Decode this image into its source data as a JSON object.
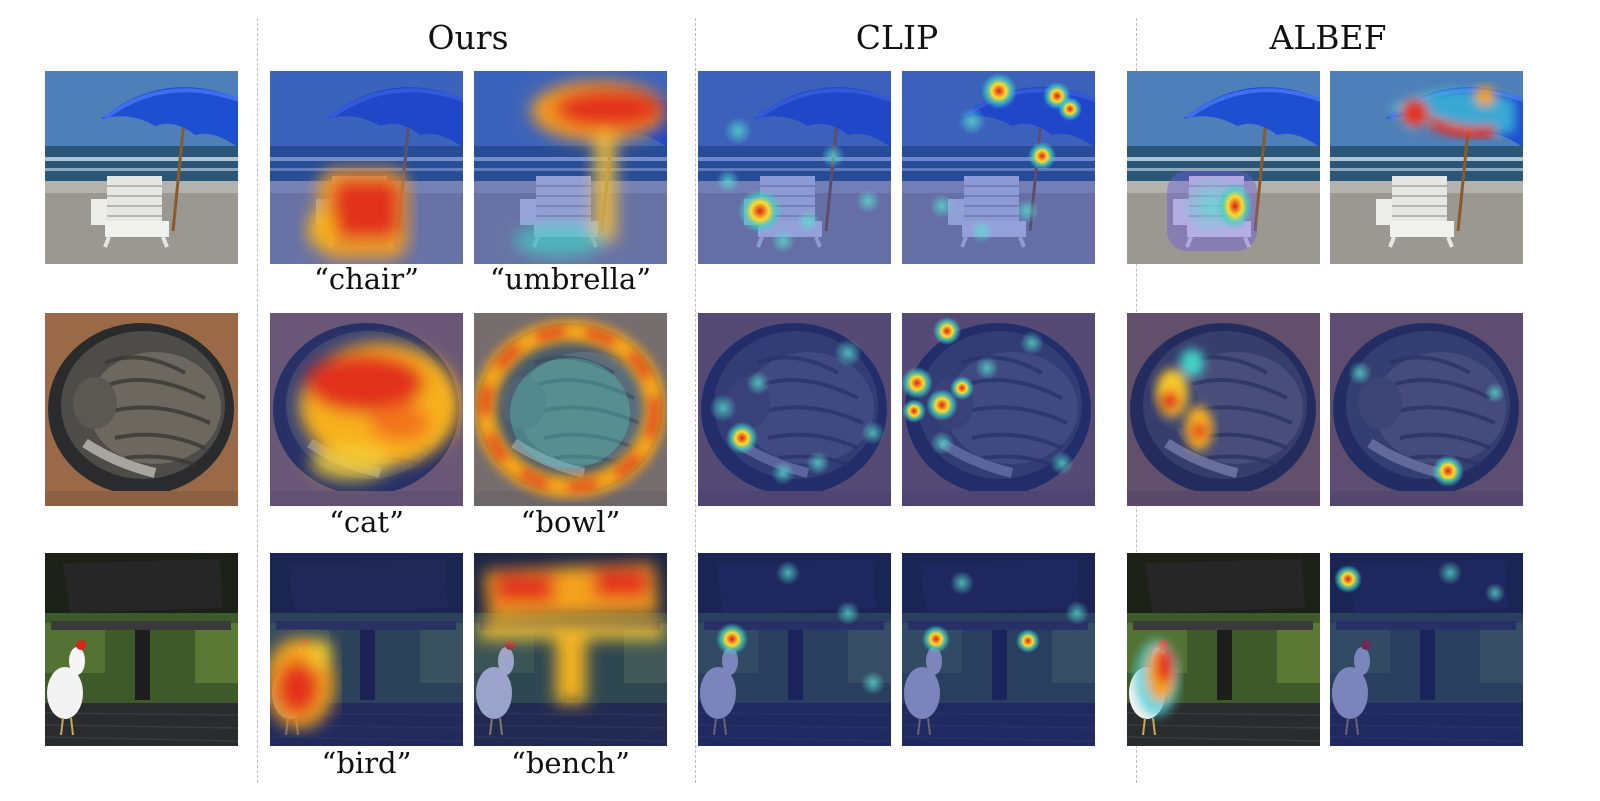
{
  "columns": {
    "ours": "Ours",
    "clip": "CLIP",
    "albef": "ALBEF"
  },
  "captions": {
    "row1": [
      "“chair”",
      "“umbrella”"
    ],
    "row2": [
      "“cat”",
      "“bowl”"
    ],
    "row3": [
      "“bird”",
      "“bench”"
    ]
  },
  "scenes": [
    "beach-chair-umbrella",
    "cat-in-bowl",
    "rooster-under-bench"
  ],
  "heat_colors": {
    "cold": "#1a2a8c",
    "hot": "#e32d1b",
    "warm": "#ffcf2a"
  }
}
